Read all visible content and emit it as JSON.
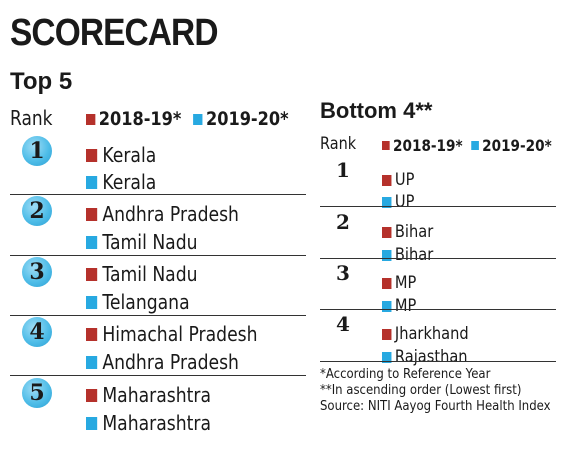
{
  "title": "SCORECARD",
  "top5": {
    "heading": "Top 5",
    "rank_label": "Rank",
    "legend": {
      "year1": "2018-19*",
      "year2": "2019-20*"
    },
    "rows": [
      {
        "rank": "1",
        "y2018": "Kerala",
        "y2019": "Kerala"
      },
      {
        "rank": "2",
        "y2018": "Andhra Pradesh",
        "y2019": "Tamil Nadu"
      },
      {
        "rank": "3",
        "y2018": "Tamil Nadu",
        "y2019": "Telangana"
      },
      {
        "rank": "4",
        "y2018": "Himachal Pradesh",
        "y2019": "Andhra Pradesh"
      },
      {
        "rank": "5",
        "y2018": "Maharashtra",
        "y2019": "Maharashtra"
      }
    ]
  },
  "bottom4": {
    "heading": "Bottom 4**",
    "rank_label": "Rank",
    "legend": {
      "year1": "2018-19*",
      "year2": "2019-20*"
    },
    "rows": [
      {
        "rank": "1",
        "y2018": "UP",
        "y2019": "UP"
      },
      {
        "rank": "2",
        "y2018": "Bihar",
        "y2019": "Bihar"
      },
      {
        "rank": "3",
        "y2018": "MP",
        "y2019": "MP"
      },
      {
        "rank": "4",
        "y2018": "Jharkhand",
        "y2019": "Rajasthan"
      }
    ]
  },
  "footnotes": [
    "*According to Reference Year",
    "**In ascending order (Lowest first)",
    "Source: NITI Aayog Fourth Health Index"
  ],
  "colors": {
    "year1": "#b5312b",
    "year2": "#27a9e1",
    "badge": "#4fbde8"
  }
}
